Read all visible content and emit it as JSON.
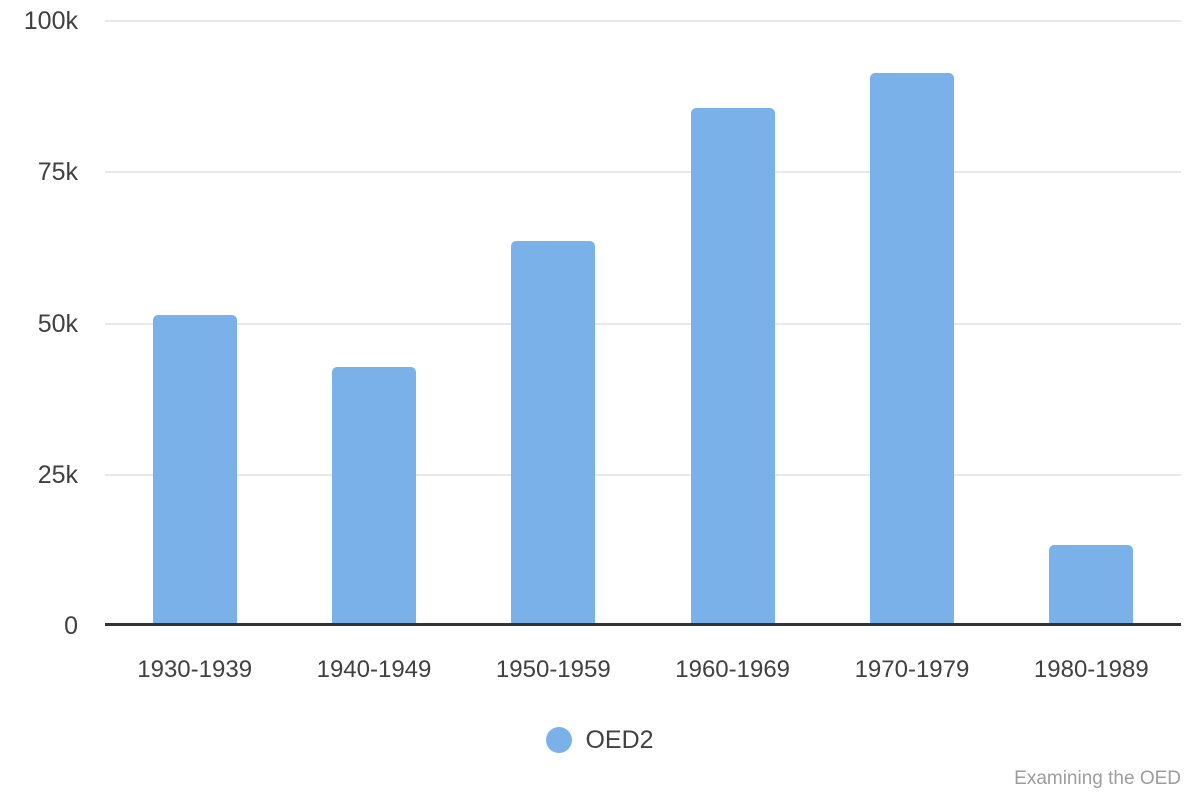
{
  "chart_data": {
    "type": "bar",
    "categories": [
      "1930-1939",
      "1940-1949",
      "1950-1959",
      "1960-1969",
      "1970-1979",
      "1980-1989"
    ],
    "series": [
      {
        "name": "OED2",
        "values": [
          51200,
          42600,
          63500,
          85500,
          91300,
          12900
        ],
        "color": "#7ab1e8"
      }
    ],
    "title": "",
    "xlabel": "",
    "ylabel": "",
    "ylim": [
      0,
      100000
    ],
    "yticks": [
      {
        "value": 0,
        "label": "0"
      },
      {
        "value": 25000,
        "label": "25k"
      },
      {
        "value": 50000,
        "label": "50k"
      },
      {
        "value": 75000,
        "label": "75k"
      },
      {
        "value": 100000,
        "label": "100k"
      }
    ],
    "grid": true,
    "legend_position": "bottom"
  },
  "legend": {
    "items": [
      {
        "label": "OED2",
        "color": "#7ab1e8"
      }
    ]
  },
  "footer": {
    "watermark": "Examining the OED"
  },
  "colors": {
    "bar": "#7ab1e8",
    "axis_text": "#404040",
    "gridline": "#e9e9e9",
    "baseline": "#333333",
    "watermark_text": "#9c9c9c",
    "background": "#ffffff"
  }
}
